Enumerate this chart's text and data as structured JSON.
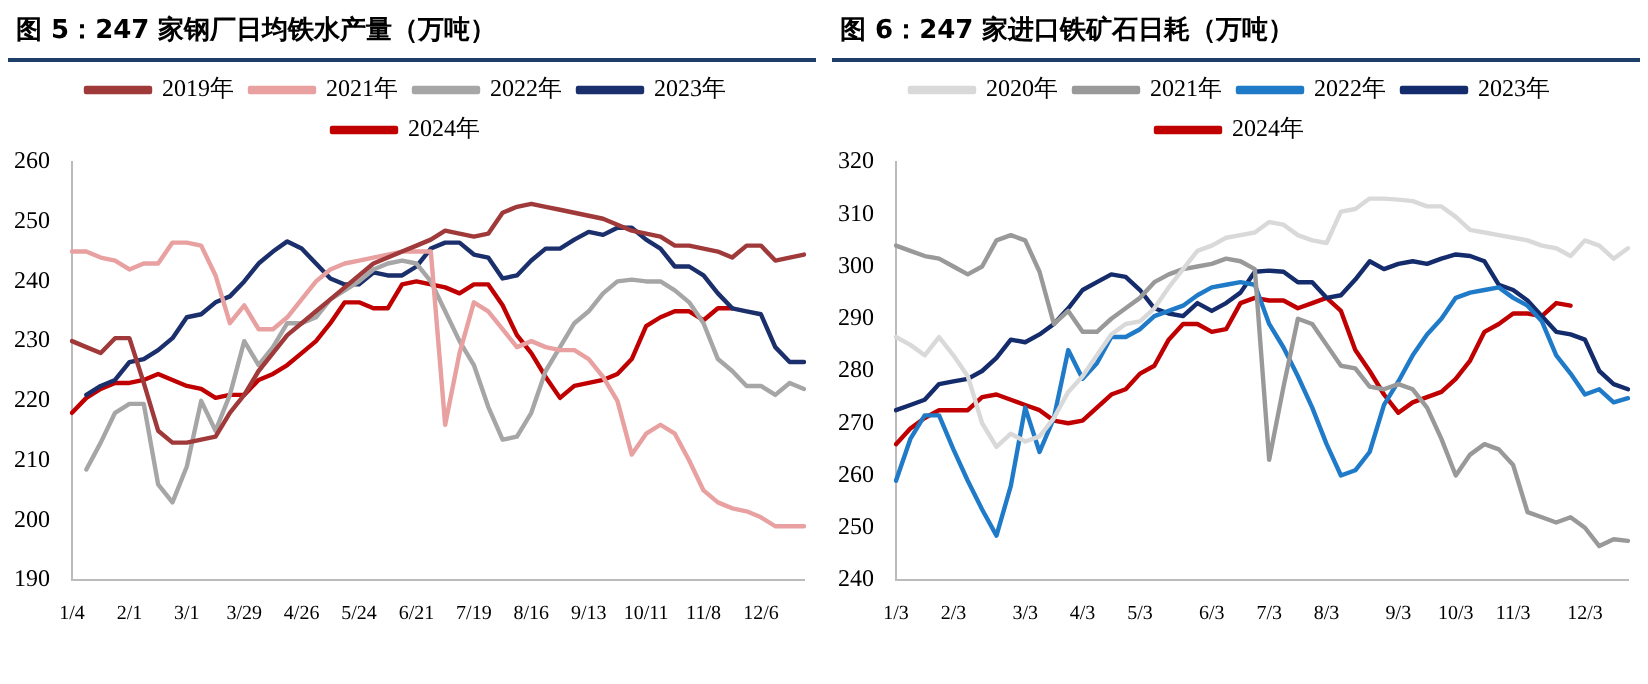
{
  "chart_data": [
    {
      "type": "line",
      "title": "图 5：247 家钢厂日均铁水产量（万吨）",
      "categories": [
        "1/4",
        null,
        null,
        null,
        "2/1",
        null,
        null,
        null,
        "3/1",
        null,
        null,
        null,
        "3/29",
        null,
        null,
        null,
        "4/26",
        null,
        null,
        null,
        "5/24",
        null,
        null,
        null,
        "6/21",
        null,
        null,
        null,
        "7/19",
        null,
        null,
        null,
        "8/16",
        null,
        null,
        null,
        "9/13",
        null,
        null,
        null,
        "10/11",
        null,
        null,
        null,
        "11/8",
        null,
        null,
        null,
        "12/6",
        null,
        null,
        null
      ],
      "series": [
        {
          "name": "2019年",
          "color": "#a0393a",
          "values": [
            230,
            229,
            228,
            230.5,
            230.5,
            223,
            215,
            213,
            213,
            213.5,
            214,
            218,
            221,
            225,
            228,
            231,
            233,
            235,
            237,
            239,
            241,
            243,
            244,
            245,
            246,
            247,
            248.5,
            248,
            247.5,
            248,
            251.5,
            252.5,
            253,
            252.5,
            252,
            251.5,
            251,
            250.5,
            249.5,
            248.5,
            248,
            247.5,
            246,
            246,
            245.5,
            245,
            244,
            246,
            246,
            243.5,
            244,
            244.5
          ]
        },
        {
          "name": "2021年",
          "color": "#e8a0a0",
          "values": [
            245,
            245,
            244,
            243.5,
            242,
            243,
            243,
            246.5,
            246.5,
            246,
            241,
            233,
            236,
            232,
            232,
            234,
            237,
            240,
            242,
            243,
            243.5,
            244,
            244.5,
            245,
            245,
            245,
            216,
            228,
            236.5,
            235,
            232,
            229,
            230,
            229,
            228.5,
            228.5,
            227,
            224,
            220,
            211,
            214.5,
            216,
            214.5,
            210,
            205,
            203,
            202,
            201.5,
            200.5,
            199,
            199,
            199
          ]
        },
        {
          "name": "2022年",
          "color": "#a6a6a6",
          "values": [
            null,
            208.5,
            213,
            218,
            219.5,
            219.5,
            206,
            203,
            209,
            220,
            215,
            221,
            230,
            226,
            229,
            233,
            233,
            234,
            237,
            238.5,
            240,
            242,
            243,
            243.5,
            243,
            240,
            235,
            230,
            226,
            219,
            213.5,
            214,
            218,
            225,
            229,
            233,
            235,
            238,
            240,
            240.3,
            240,
            240,
            238.5,
            236.5,
            233,
            227,
            225,
            222.5,
            222.5,
            221,
            223,
            222
          ]
        },
        {
          "name": "2023年",
          "color": "#1a2f6b",
          "values": [
            null,
            221,
            222.5,
            223.5,
            226.5,
            227,
            228.5,
            230.5,
            234,
            234.5,
            236.5,
            237.5,
            240,
            243,
            245,
            246.7,
            245.5,
            243,
            240.5,
            239.5,
            239.5,
            241.5,
            241,
            241,
            242.5,
            245.5,
            246.5,
            246.5,
            244.5,
            244,
            240.5,
            241,
            243.5,
            245.5,
            245.5,
            247,
            248.3,
            247.8,
            249,
            249,
            247,
            245.5,
            242.5,
            242.5,
            241,
            238,
            235.5,
            235,
            234.5,
            229,
            226.5,
            226.5
          ]
        },
        {
          "name": "2024年",
          "color": "#c00000",
          "values": [
            218,
            220.5,
            222,
            223,
            223,
            223.5,
            224.5,
            223.5,
            222.5,
            222,
            220.5,
            221,
            221,
            223.5,
            224.5,
            226,
            228,
            230,
            233,
            236.5,
            236.5,
            235.5,
            235.5,
            239.5,
            240,
            239.5,
            239,
            238,
            239.5,
            239.5,
            236,
            231,
            228,
            224,
            220.5,
            222.5,
            223,
            223.5,
            224.5,
            227,
            232.5,
            234,
            235,
            235,
            233.5,
            235.5,
            235.5,
            null,
            null,
            null,
            null,
            null
          ]
        }
      ],
      "ylim": [
        190,
        260
      ],
      "yticks": [
        190,
        200,
        210,
        220,
        230,
        240,
        250,
        260
      ],
      "legend": "top",
      "grid": false,
      "marker": "none"
    },
    {
      "type": "line",
      "title": "图 6：247 家进口铁矿石日耗（万吨）",
      "categories": [
        "1/3",
        null,
        null,
        null,
        "2/3",
        null,
        null,
        null,
        null,
        "3/3",
        null,
        null,
        null,
        "4/3",
        null,
        null,
        null,
        "5/3",
        null,
        null,
        null,
        null,
        "6/3",
        null,
        null,
        null,
        "7/3",
        null,
        null,
        null,
        "8/3",
        null,
        null,
        null,
        null,
        "9/3",
        null,
        null,
        null,
        "10/3",
        null,
        null,
        null,
        "11/3",
        null,
        null,
        null,
        null,
        "12/3",
        null,
        null,
        null
      ],
      "series": [
        {
          "name": "2020年",
          "color": "#d9d9d9",
          "values": [
            286.5,
            285,
            283,
            286.5,
            283,
            279,
            270,
            265.5,
            268,
            266.5,
            267.5,
            271,
            276,
            279,
            283,
            287,
            289,
            289.5,
            292,
            296,
            299.5,
            303,
            304,
            305.5,
            306,
            306.5,
            308.5,
            308,
            306,
            305,
            304.5,
            310.5,
            311,
            313,
            313,
            312.8,
            312.5,
            311.5,
            311.5,
            309.5,
            307,
            306.5,
            306,
            305.5,
            305,
            304,
            303.5,
            302,
            305,
            304,
            301.5,
            303.5
          ]
        },
        {
          "name": "2021年",
          "color": "#999999",
          "values": [
            304,
            303,
            302,
            301.5,
            300,
            298.5,
            300,
            305,
            306,
            305,
            299,
            289,
            291.5,
            287.5,
            287.5,
            290,
            292,
            294,
            297,
            298.5,
            299.5,
            300,
            300.5,
            301.5,
            301,
            299.5,
            263,
            277,
            290,
            289,
            285,
            281,
            280.5,
            277,
            276.5,
            277.5,
            276.5,
            273,
            267,
            260,
            264,
            266,
            265,
            262,
            253,
            252,
            251,
            252,
            250,
            246.5,
            247.8,
            247.5
          ]
        },
        {
          "name": "2022年",
          "color": "#1f7ac8",
          "values": [
            259,
            267,
            271.5,
            271.5,
            265,
            259,
            253.5,
            248.5,
            258,
            273,
            264.5,
            271,
            284,
            278.5,
            281.5,
            286.5,
            286.5,
            288,
            290.5,
            291.5,
            292.5,
            294.5,
            296,
            296.5,
            297,
            296.5,
            289,
            284.5,
            279,
            273,
            266,
            260,
            261,
            264.5,
            273.5,
            278,
            283,
            287,
            290,
            294,
            295,
            295.5,
            296,
            294,
            292.5,
            289.5,
            283,
            279.5,
            275.5,
            276.5,
            274,
            274.8
          ]
        },
        {
          "name": "2023年",
          "color": "#142c6b",
          "values": [
            272.5,
            273.5,
            274.5,
            277.5,
            278,
            278.5,
            280,
            282.5,
            286,
            285.5,
            287,
            289,
            292,
            295.5,
            297,
            298.5,
            298,
            295.5,
            292,
            291,
            290.5,
            293,
            291.5,
            293,
            295,
            299,
            299.2,
            299,
            297,
            297,
            294,
            294.5,
            297.5,
            301,
            299.5,
            300.5,
            301,
            300.5,
            301.5,
            302.3,
            302,
            301,
            296.5,
            295.5,
            293.5,
            290.5,
            287.5,
            287,
            286,
            280,
            277.5,
            276.5
          ]
        },
        {
          "name": "2024年",
          "color": "#c00000",
          "values": [
            266,
            269,
            271,
            272.5,
            272.5,
            272.5,
            275,
            275.5,
            274.5,
            273.5,
            272.5,
            270.5,
            270,
            270.5,
            273,
            275.5,
            276.5,
            279.5,
            281,
            286,
            289,
            289,
            287.5,
            288,
            293,
            294,
            293.5,
            293.5,
            292,
            293,
            294,
            291.5,
            284,
            280,
            275.5,
            272,
            274,
            275,
            276,
            278.5,
            282,
            287.5,
            289,
            291,
            291,
            290.5,
            293,
            292.5,
            null,
            null,
            null,
            null
          ]
        }
      ],
      "ylim": [
        240,
        320
      ],
      "yticks": [
        240,
        250,
        260,
        270,
        280,
        290,
        300,
        310,
        320
      ],
      "legend": "top",
      "grid": false,
      "marker": "none"
    }
  ]
}
